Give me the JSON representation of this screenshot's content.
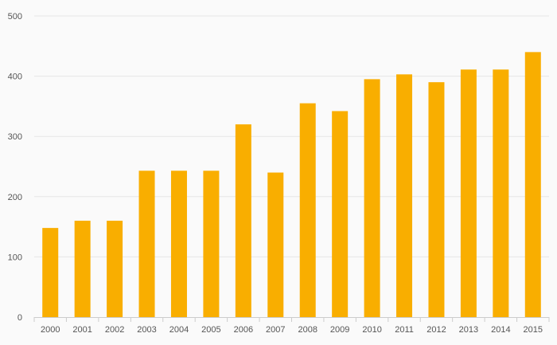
{
  "chart_data": {
    "type": "bar",
    "title": "",
    "xlabel": "",
    "ylabel": "",
    "categories": [
      "2000",
      "2001",
      "2002",
      "2003",
      "2004",
      "2005",
      "2006",
      "2007",
      "2008",
      "2009",
      "2010",
      "2011",
      "2012",
      "2013",
      "2014",
      "2015"
    ],
    "values": [
      148,
      160,
      160,
      243,
      243,
      243,
      320,
      240,
      355,
      342,
      395,
      403,
      390,
      411,
      411,
      440
    ],
    "ylim": [
      0,
      500
    ],
    "yticks": [
      0,
      100,
      200,
      300,
      400,
      500
    ],
    "grid": true,
    "legend": "none",
    "colors": {
      "bar": "#f9ae00",
      "grid": "#e6e6e6",
      "axis": "#cccccc",
      "tick_text": "#555555",
      "background": "#fafafa"
    }
  }
}
